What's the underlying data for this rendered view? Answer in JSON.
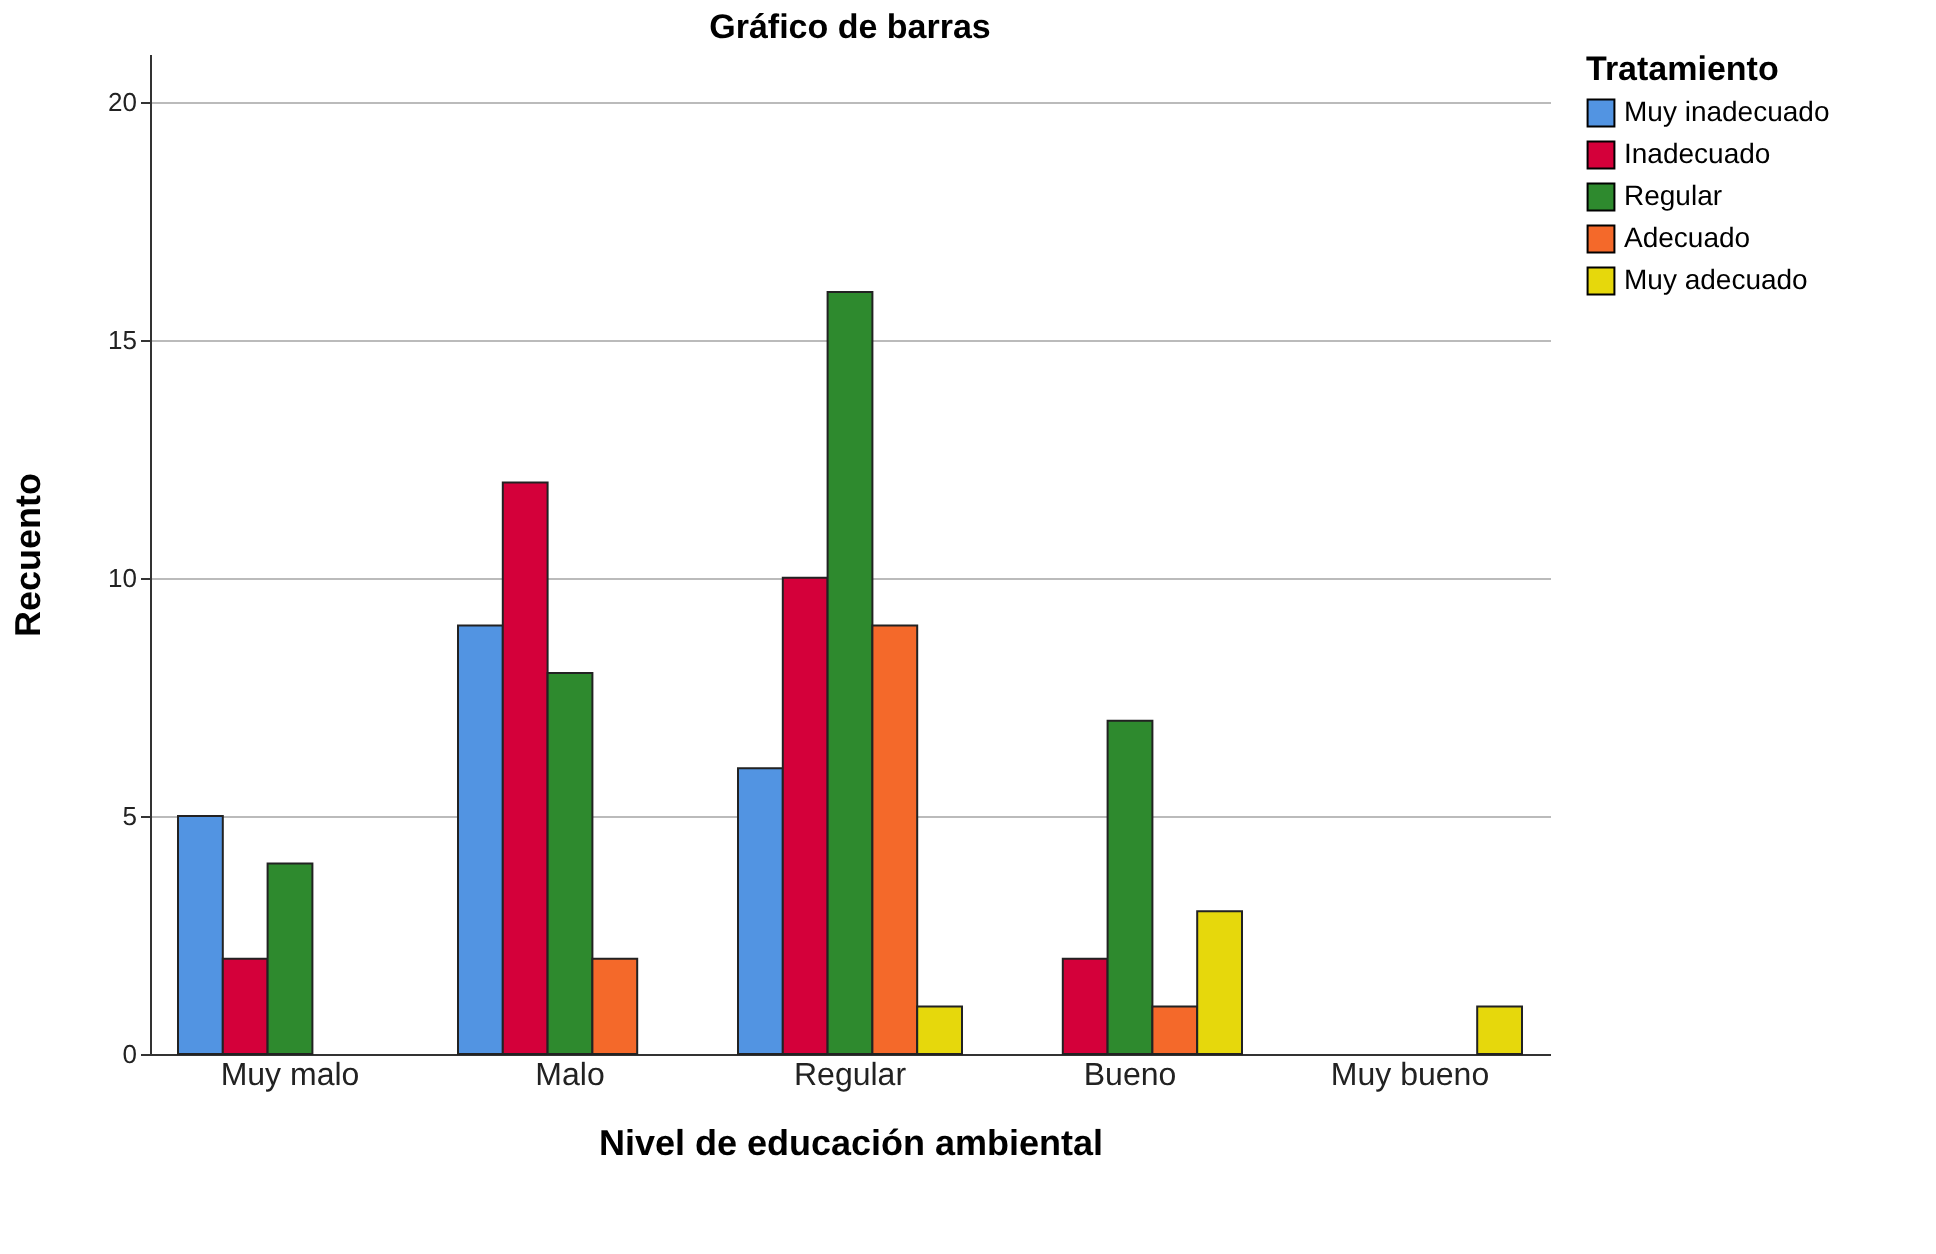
{
  "chart_data": {
    "type": "bar",
    "title": "Gráfico de barras",
    "xlabel": "Nivel de educación ambiental",
    "ylabel": "Recuento",
    "legend_title": "Tratamiento",
    "legend": "right",
    "grid": "y",
    "categories": [
      "Muy malo",
      "Malo",
      "Regular",
      "Bueno",
      "Muy bueno"
    ],
    "ylim": [
      0,
      21
    ],
    "yticks": [
      0,
      5,
      10,
      15,
      20
    ],
    "series": [
      {
        "name": "Muy inadecuado",
        "color": "#5294e2",
        "values": [
          5,
          9,
          6,
          null,
          null
        ]
      },
      {
        "name": "Inadecuado",
        "color": "#d4003a",
        "values": [
          2,
          12,
          10,
          2,
          null
        ]
      },
      {
        "name": "Regular",
        "color": "#2e8a2e",
        "values": [
          4,
          8,
          16,
          7,
          null
        ]
      },
      {
        "name": "Adecuado",
        "color": "#f4692a",
        "values": [
          null,
          2,
          9,
          1,
          null
        ]
      },
      {
        "name": "Muy adecuado",
        "color": "#e6d80c",
        "values": [
          null,
          null,
          1,
          3,
          1
        ]
      }
    ]
  }
}
